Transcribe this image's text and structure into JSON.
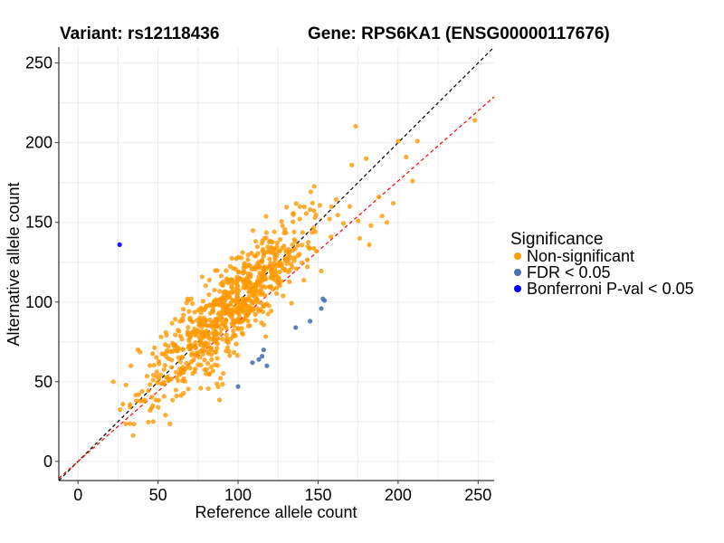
{
  "chart_data": {
    "type": "scatter",
    "title_left": "Variant: rs12118436",
    "title_right": "Gene: RPS6KA1 (ENSG00000117676)",
    "xlabel": "Reference allele count",
    "ylabel": "Alternative allele count",
    "xlim": [
      -12,
      260
    ],
    "ylim": [
      -12,
      260
    ],
    "x_ticks": [
      0,
      50,
      100,
      150,
      200,
      250
    ],
    "y_ticks": [
      0,
      50,
      100,
      150,
      200,
      250
    ],
    "grid": true,
    "legend": {
      "title": "Significance",
      "position": "right",
      "entries": [
        {
          "label": "Non-significant",
          "color": "#FF9900"
        },
        {
          "label": "FDR < 0.05",
          "color": "#4A72B0"
        },
        {
          "label": "Bonferroni P-val < 0.05",
          "color": "#0000FF"
        }
      ]
    },
    "reference_lines": [
      {
        "name": "identity",
        "slope": 1.0,
        "intercept": 0,
        "color": "#000000",
        "dash": true
      },
      {
        "name": "fit",
        "slope": 0.88,
        "intercept": 0,
        "color": "#FF0000",
        "dash": true
      }
    ],
    "point_cloud": {
      "group": "Non-significant",
      "count": 800,
      "x_mean": 95,
      "x_sd": 25,
      "x_min": 22,
      "x_max": 250,
      "slope": 0.98,
      "intercept": 3,
      "noise_sd": 14,
      "seed": 12118436
    },
    "series": [
      {
        "name": "Non-significant",
        "color": "#FF9900",
        "points": [
          [
            248,
            214
          ],
          [
            200,
            201
          ],
          [
            212,
            201
          ],
          [
            205,
            191
          ],
          [
            180,
            190
          ],
          [
            171,
            186
          ],
          [
            209,
            176
          ],
          [
            188,
            166
          ],
          [
            197,
            162
          ],
          [
            190,
            154
          ],
          [
            193,
            150
          ],
          [
            183,
            148
          ],
          [
            175,
            151
          ],
          [
            22,
            50
          ],
          [
            33,
            60
          ],
          [
            28,
            36
          ],
          [
            38,
            42
          ],
          [
            45,
            32
          ],
          [
            47,
            25
          ],
          [
            40,
            44
          ],
          [
            30,
            48
          ],
          [
            176,
            140
          ],
          [
            182,
            136
          ],
          [
            158,
            141
          ],
          [
            145,
            158
          ]
        ]
      },
      {
        "name": "FDR < 0.05",
        "color": "#4A72B0",
        "points": [
          [
            154,
            101
          ],
          [
            153,
            102
          ],
          [
            152,
            96
          ],
          [
            145,
            88
          ],
          [
            136,
            84
          ],
          [
            116,
            70
          ],
          [
            113,
            64
          ],
          [
            115,
            66
          ],
          [
            109,
            62
          ],
          [
            118,
            60
          ],
          [
            100,
            47
          ]
        ]
      },
      {
        "name": "Bonferroni P-val < 0.05",
        "color": "#0000FF",
        "points": [
          [
            26,
            136
          ]
        ]
      }
    ]
  }
}
